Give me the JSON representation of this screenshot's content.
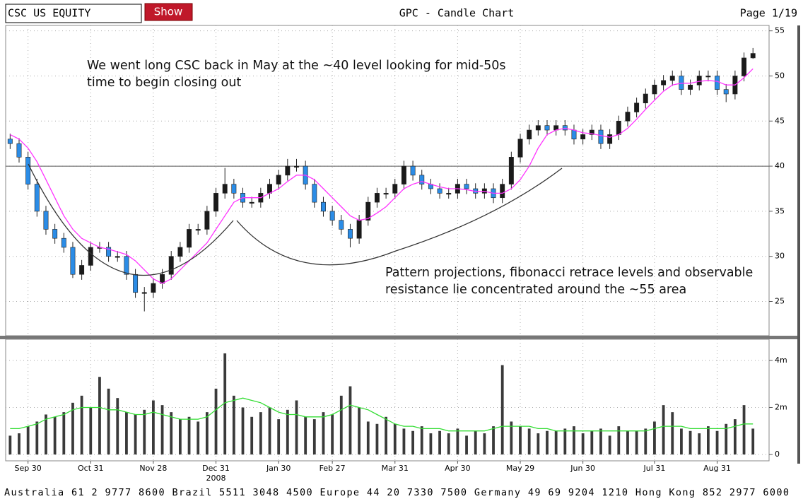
{
  "header": {
    "ticker_input": "CSC US EQUITY",
    "button": "Show",
    "title": "GPC - Candle Chart",
    "page": "Page 1/19"
  },
  "chart_data": {
    "type": "candlestick",
    "open": [
      43,
      42.5,
      41,
      38,
      35,
      33,
      32,
      31,
      28,
      29,
      31,
      31,
      30,
      30,
      28,
      26,
      26,
      27,
      28,
      30,
      31,
      33,
      33,
      35,
      37,
      38,
      37,
      36,
      36,
      37,
      38,
      39,
      40,
      40,
      38,
      36,
      35,
      34,
      33,
      32,
      34,
      36,
      37,
      37,
      38,
      40,
      39,
      38,
      37.5,
      37,
      37,
      38,
      37.5,
      37,
      37.5,
      36.5,
      38,
      41,
      43,
      44,
      44.5,
      44,
      44.5,
      44,
      43,
      43.5,
      44,
      42.5,
      43.5,
      45,
      46,
      47,
      48,
      49,
      49.5,
      50,
      48.5,
      49,
      50,
      50,
      48.5,
      48,
      50,
      52
    ],
    "high": [
      43.6,
      43.1,
      41.6,
      38.6,
      35.6,
      33.6,
      32.6,
      31.6,
      29.6,
      31.6,
      31.6,
      31.6,
      30.6,
      30.6,
      28.6,
      26.6,
      27.6,
      28.6,
      30.6,
      31.6,
      33.6,
      33.6,
      35.6,
      37.6,
      39.8,
      38.6,
      37.6,
      36.6,
      37.6,
      38.6,
      39.6,
      40.8,
      40.8,
      40.6,
      38.6,
      36.6,
      35.6,
      34.6,
      33.6,
      34.6,
      36.6,
      37.6,
      37.6,
      38.6,
      40.6,
      40.6,
      39.6,
      38.6,
      38.1,
      37.6,
      38.6,
      38.6,
      38.1,
      38.1,
      38.1,
      38.6,
      41.6,
      43.6,
      44.6,
      45.1,
      45.1,
      45.1,
      45.1,
      44.6,
      44.1,
      44.6,
      44.6,
      44.1,
      45.6,
      46.6,
      47.6,
      48.6,
      49.6,
      50.1,
      50.6,
      50.6,
      49.6,
      50.6,
      50.6,
      50.6,
      49.1,
      50.6,
      52.6,
      53.1
    ],
    "low": [
      41.9,
      40.4,
      37.4,
      34.4,
      32.4,
      31.4,
      30.4,
      27.6,
      27.4,
      28.4,
      30.4,
      29.4,
      29.4,
      27.4,
      25.4,
      23.9,
      25.4,
      26.4,
      27.4,
      29.4,
      30.4,
      32.4,
      32.4,
      34.4,
      36.4,
      36.4,
      35.4,
      35.4,
      35.4,
      36.4,
      37.4,
      38.4,
      39.4,
      37.4,
      35.4,
      34.4,
      33.4,
      32.4,
      31,
      31.4,
      33.4,
      35.4,
      36.4,
      36.4,
      37.4,
      38.4,
      37.4,
      36.9,
      36.4,
      36.4,
      36.4,
      36.9,
      36.4,
      36.4,
      35.9,
      35.9,
      37.4,
      40.4,
      42.4,
      43.4,
      43.4,
      43.4,
      43.4,
      42.4,
      42.4,
      42.9,
      41.9,
      41.9,
      42.9,
      44.4,
      45.4,
      46.4,
      47.4,
      48.4,
      48.9,
      47.9,
      47.9,
      48.4,
      49.4,
      47.9,
      47.1,
      47.4,
      49.4,
      51.9
    ],
    "close": [
      42.5,
      41,
      38,
      35,
      33,
      32,
      31,
      28,
      29,
      31,
      31,
      30,
      30,
      28,
      26,
      26,
      27,
      28,
      30,
      31,
      33,
      33,
      35,
      37,
      38,
      37,
      36,
      36,
      37,
      38,
      39,
      40,
      40,
      38,
      36,
      35,
      34,
      33,
      32,
      34,
      36,
      37,
      37,
      38,
      40,
      39,
      38,
      37.5,
      37,
      37,
      38,
      37.5,
      37,
      37.5,
      36.5,
      38,
      41,
      43,
      44,
      44.5,
      44,
      44.5,
      44,
      43,
      43.5,
      44,
      42.5,
      43.5,
      45,
      46,
      47,
      48,
      49,
      49.5,
      50,
      48.5,
      49,
      50,
      50,
      48.5,
      48,
      50,
      52,
      52.5
    ],
    "up_color": "#1a1a1a",
    "down_color": "#2b8ce6",
    "ma": {
      "color": "#ff33ff",
      "values": [
        43.5,
        43,
        42,
        40.5,
        38.5,
        36.5,
        34.5,
        33,
        32,
        31.5,
        31,
        30.8,
        30.5,
        30.2,
        29.5,
        28.5,
        27.5,
        27,
        27.5,
        28.5,
        29.5,
        30.5,
        31.5,
        33,
        34.5,
        36,
        36.5,
        36.5,
        36.5,
        37,
        37.5,
        38.3,
        39,
        39,
        38.5,
        37.5,
        36.5,
        35.5,
        34.5,
        34,
        34.2,
        34.8,
        35.5,
        36.5,
        37.5,
        38,
        38.3,
        38,
        37.7,
        37.5,
        37.5,
        37.4,
        37.2,
        37.2,
        37,
        37,
        37.5,
        38.5,
        40,
        42,
        43.5,
        44,
        44.2,
        44,
        43.7,
        43.6,
        43.4,
        43.2,
        43.5,
        44.2,
        45.2,
        46.3,
        47.3,
        48.3,
        49,
        49.2,
        49.2,
        49.4,
        49.5,
        49.4,
        49,
        49,
        49.8,
        50.8
      ]
    },
    "hline": 40,
    "ylim": [
      21.2,
      55.6
    ],
    "yticks": [
      25,
      30,
      35,
      40,
      45,
      50,
      55
    ],
    "volume": {
      "color": "#3a3a3a",
      "values": [
        0.8,
        0.9,
        1.2,
        1.4,
        1.7,
        1.6,
        1.8,
        2.2,
        2.5,
        2.0,
        3.3,
        2.8,
        2.4,
        1.8,
        1.7,
        1.9,
        2.3,
        2.1,
        1.8,
        1.5,
        1.6,
        1.4,
        1.8,
        2.8,
        4.3,
        2.5,
        2.0,
        1.6,
        1.8,
        2.0,
        1.5,
        1.9,
        2.3,
        1.6,
        1.5,
        1.8,
        1.7,
        2.5,
        2.9,
        2.0,
        1.4,
        1.3,
        1.6,
        1.3,
        1.1,
        1.0,
        1.2,
        0.9,
        1.0,
        0.9,
        1.1,
        0.8,
        1.0,
        0.9,
        1.2,
        3.8,
        1.4,
        1.2,
        1.1,
        0.9,
        1.0,
        1.0,
        1.1,
        1.2,
        0.9,
        1.0,
        1.1,
        0.8,
        1.2,
        1.0,
        1.0,
        1.1,
        1.4,
        2.1,
        1.8,
        1.1,
        1.0,
        0.9,
        1.2,
        1.0,
        1.3,
        1.5,
        2.1,
        1.1
      ]
    },
    "volume_ma": {
      "color": "#33dd33",
      "values": [
        1.1,
        1.1,
        1.2,
        1.3,
        1.5,
        1.6,
        1.7,
        1.9,
        2.0,
        2.0,
        2.0,
        1.9,
        1.9,
        1.8,
        1.7,
        1.7,
        1.8,
        1.7,
        1.6,
        1.5,
        1.5,
        1.5,
        1.6,
        1.9,
        2.2,
        2.3,
        2.4,
        2.3,
        2.2,
        2.0,
        1.8,
        1.7,
        1.7,
        1.6,
        1.6,
        1.6,
        1.7,
        1.9,
        2.1,
        2.0,
        1.9,
        1.7,
        1.5,
        1.3,
        1.2,
        1.2,
        1.1,
        1.1,
        1.1,
        1.0,
        1.0,
        1.0,
        1.0,
        1.0,
        1.1,
        1.2,
        1.2,
        1.2,
        1.2,
        1.1,
        1.1,
        1.0,
        1.0,
        1.0,
        1.0,
        1.0,
        1.0,
        1.0,
        1.0,
        1.0,
        1.0,
        1.0,
        1.1,
        1.2,
        1.2,
        1.2,
        1.1,
        1.1,
        1.1,
        1.1,
        1.1,
        1.2,
        1.3,
        1.3
      ]
    },
    "vlim": [
      -0.27,
      4.9
    ],
    "vticks": [
      0,
      {
        "value": 2,
        "label": "2m"
      },
      {
        "value": 4,
        "label": "4m"
      }
    ],
    "xlim": [
      -0.5,
      84.8
    ],
    "xticks": [
      {
        "value": 2,
        "label": "Sep 30"
      },
      {
        "value": 9,
        "label": "Oct 31"
      },
      {
        "value": 16,
        "label": "Nov 28"
      },
      {
        "value": 23,
        "label": "Dec 31"
      },
      {
        "value": 30,
        "label": "Jan 30"
      },
      {
        "value": 36,
        "label": "Feb 27"
      },
      {
        "value": 43,
        "label": "Mar 31"
      },
      {
        "value": 50,
        "label": "Apr 30"
      },
      {
        "value": 57,
        "label": "May 29"
      },
      {
        "value": 64,
        "label": "Jun 30"
      },
      {
        "value": 72,
        "label": "Jul 31"
      },
      {
        "value": 79,
        "label": "Aug 31"
      }
    ],
    "year_label": {
      "value": 23,
      "label": "2008"
    },
    "grid": true,
    "annotations": [
      {
        "lines": [
          "We went long CSC back in May at the ~40 level looking for mid-50s",
          "time to begin closing out"
        ]
      },
      {
        "lines": [
          "Pattern projections, fibonacci retrace levels and observable",
          "resistance lie concentrated around the ~55 area"
        ]
      }
    ]
  },
  "footer": "Australia 61 2 9777 8600 Brazil 5511 3048 4500 Europe 44 20 7330 7500 Germany 49 69 9204 1210 Hong Kong 852 2977 6000"
}
